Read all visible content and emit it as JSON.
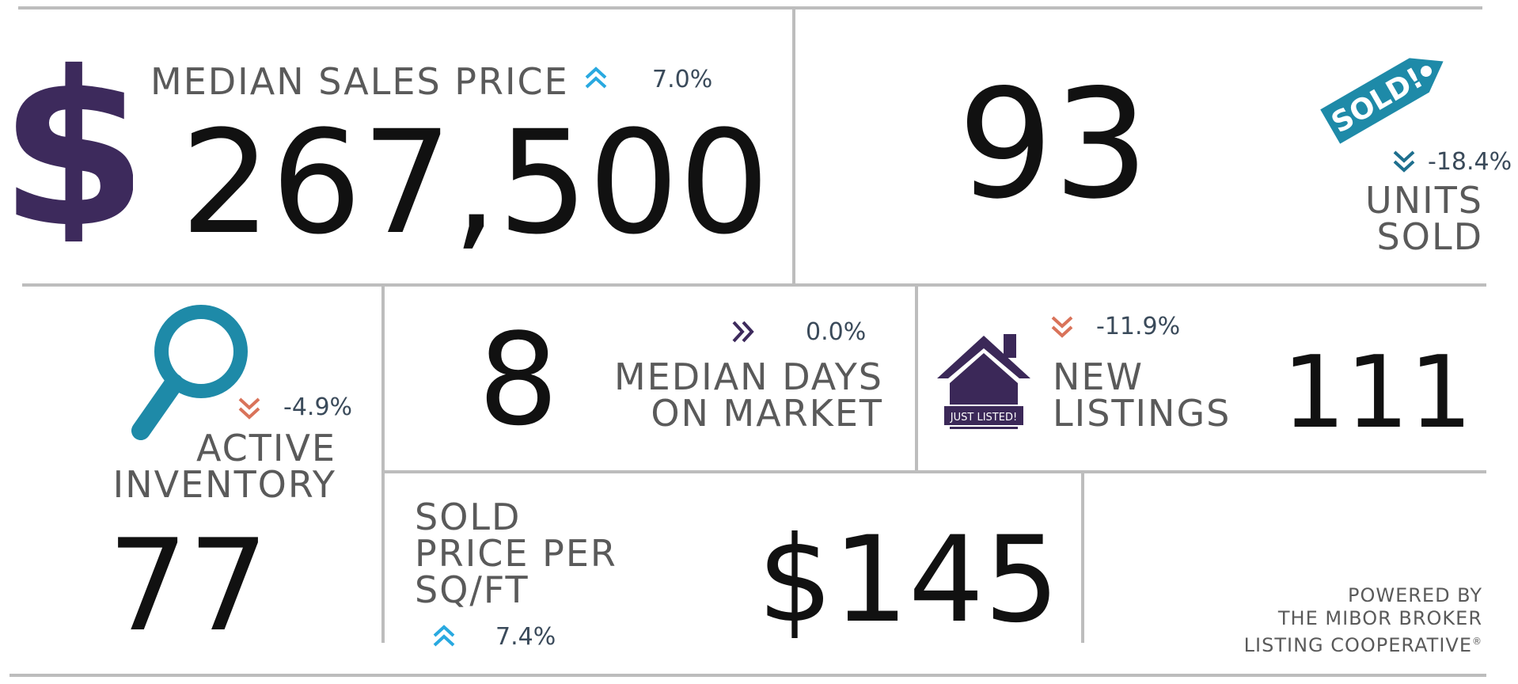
{
  "median_sales_price": {
    "label": "MEDIAN SALES PRICE",
    "value": "267,500",
    "change": "7.0%",
    "trend": "up",
    "icon": "dollar-icon"
  },
  "units_sold": {
    "value": "93",
    "label_line1": "UNITS",
    "label_line2": "SOLD",
    "change": "-18.4%",
    "trend": "down",
    "tag_text": "SOLD!",
    "icon": "sold-tag-icon"
  },
  "active_inventory": {
    "label_line1": "ACTIVE",
    "label_line2": "INVENTORY",
    "value": "77",
    "change": "-4.9%",
    "trend": "down",
    "icon": "magnifier-icon"
  },
  "median_days": {
    "value": "8",
    "label_line1": "MEDIAN DAYS",
    "label_line2": "ON MARKET",
    "change": "0.0%",
    "trend": "flat"
  },
  "new_listings": {
    "label_line1": "NEW",
    "label_line2": "LISTINGS",
    "value": "111",
    "change": "-11.9%",
    "trend": "down",
    "house_sign": "JUST LISTED!",
    "icon": "house-icon"
  },
  "price_per_sqft": {
    "label_line1": "SOLD",
    "label_line2": "PRICE PER",
    "label_line3": "SQ/FT",
    "value": "$145",
    "change": "7.4%",
    "trend": "up"
  },
  "powered_by": {
    "line1": "POWERED BY",
    "line2": "THE MIBOR BROKER",
    "line3": "LISTING COOPERATIVE",
    "mark": "®"
  },
  "colors": {
    "dollar_purple": "#3d2a5c",
    "house_purple": "#3b2858",
    "teal": "#1e8aa8",
    "up_arrow": "#29a9e0",
    "down_arrow": "#d9735a",
    "flat_arrow": "#3d2a5c",
    "sold_down_arrow": "#1e6f8e"
  }
}
